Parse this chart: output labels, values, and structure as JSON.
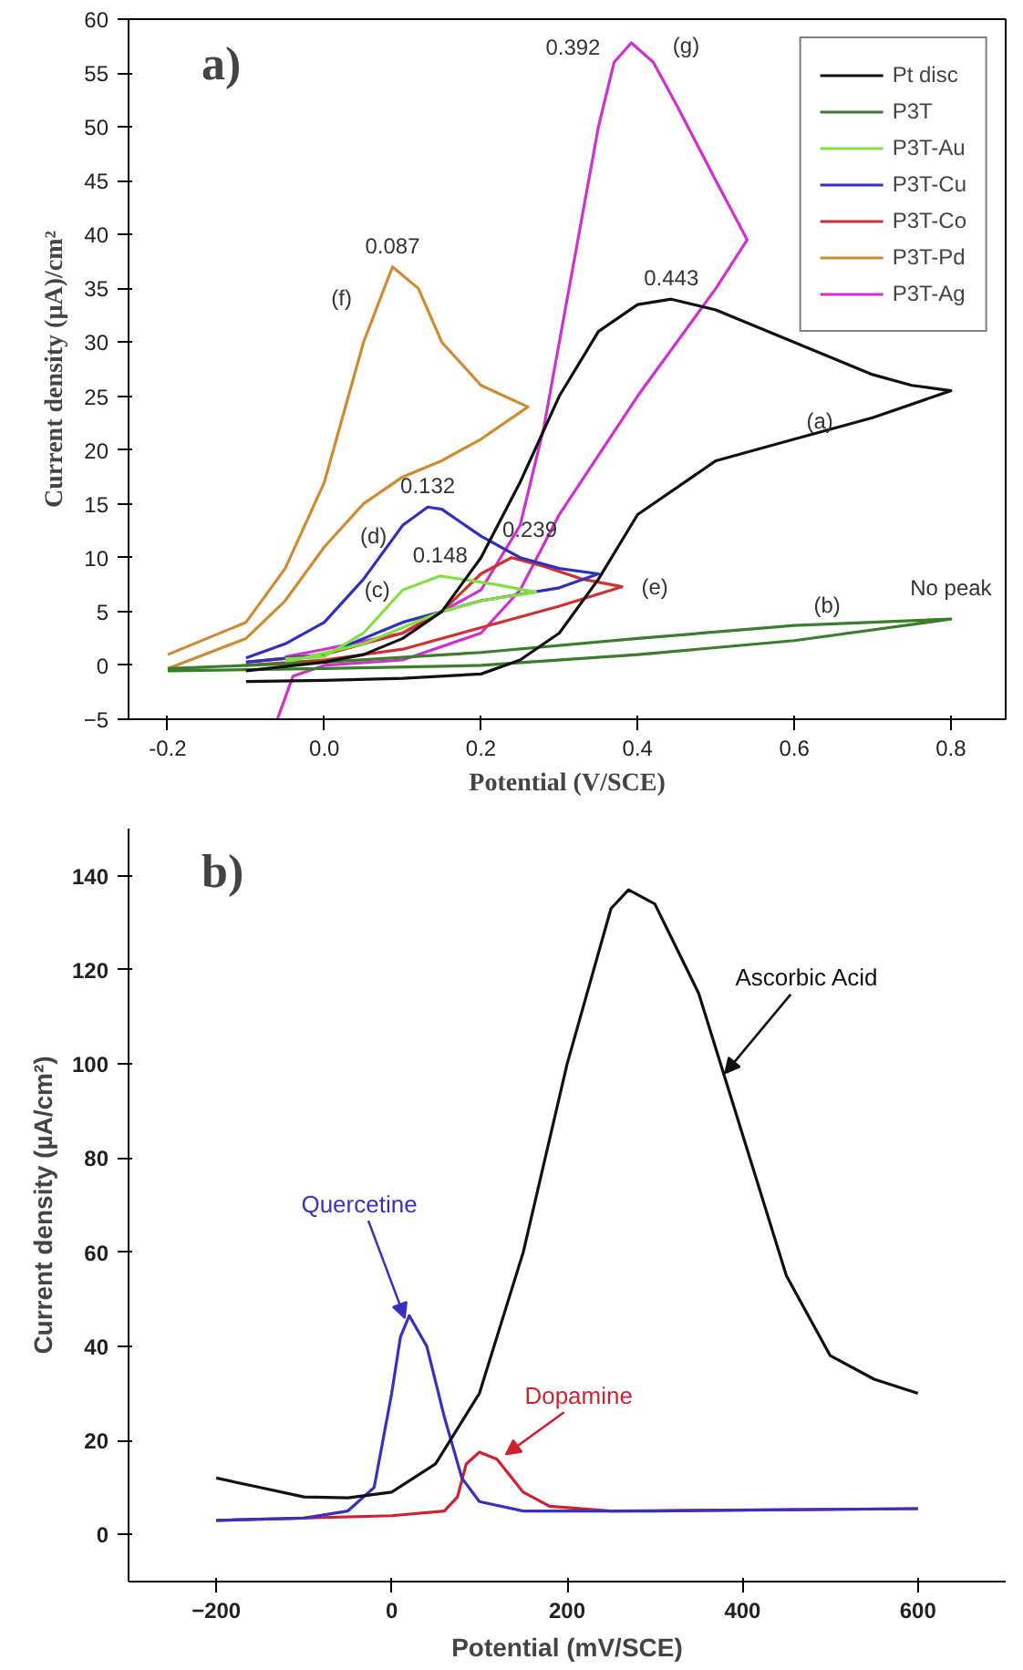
{
  "chart_data": [
    {
      "type": "line",
      "title": "a)",
      "xlabel": "Potential (V/SCE)",
      "ylabel": "Current density (µA)/cm²",
      "xlim": [
        -0.25,
        0.87
      ],
      "xticks": [
        {
          "value": -0.2,
          "label": "-0.2"
        },
        {
          "value": 0,
          "label": "0.0"
        },
        {
          "value": 0.2,
          "label": "0.2"
        },
        {
          "value": 0.4,
          "label": "0.4"
        },
        {
          "value": 0.6,
          "label": "0.6"
        },
        {
          "value": 0.8,
          "label": "0.8"
        }
      ],
      "ylim": [
        -5,
        60
      ],
      "yticks": [
        -5,
        0,
        5,
        10,
        15,
        20,
        25,
        30,
        35,
        40,
        45,
        50,
        55,
        60
      ],
      "grid": false,
      "legend": "top right",
      "series": [
        {
          "name": "Pt disc",
          "color": "#111111",
          "x": [
            -0.1,
            0,
            0.1,
            0.2,
            0.25,
            0.3,
            0.35,
            0.4,
            0.5,
            0.6,
            0.7,
            0.8,
            0.75,
            0.7,
            0.6,
            0.5,
            0.443,
            0.4,
            0.35,
            0.3,
            0.25,
            0.2,
            0.15,
            0.1,
            0.05,
            0,
            -0.1
          ],
          "values": [
            -1.5,
            -1.4,
            -1.2,
            -0.8,
            0.5,
            3,
            8,
            14,
            19,
            21,
            23,
            25.5,
            26,
            27,
            30,
            33,
            34,
            33.5,
            31,
            25,
            17,
            10,
            5,
            2.5,
            1,
            0.3,
            -0.5
          ]
        },
        {
          "name": "P3T",
          "color": "#3a7d2a",
          "x": [
            -0.2,
            0,
            0.2,
            0.4,
            0.6,
            0.8,
            0.6,
            0.4,
            0.2,
            0,
            -0.2
          ],
          "values": [
            -0.5,
            -0.3,
            0,
            1,
            2.3,
            4.3,
            3.7,
            2.5,
            1.2,
            0.3,
            -0.3
          ]
        },
        {
          "name": "P3T-Au",
          "color": "#80e040",
          "x": [
            -0.05,
            0.05,
            0.1,
            0.15,
            0.2,
            0.27,
            0.22,
            0.148,
            0.1,
            0.05,
            0,
            -0.05
          ],
          "values": [
            0.3,
            2,
            3.5,
            5,
            6,
            6.8,
            7.5,
            8.3,
            7,
            3,
            0.8,
            0.6
          ]
        },
        {
          "name": "P3T-Cu",
          "color": "#3030c0",
          "x": [
            -0.1,
            0,
            0.1,
            0.2,
            0.3,
            0.35,
            0.3,
            0.25,
            0.2,
            0.15,
            0.132,
            0.1,
            0.05,
            0,
            -0.05,
            -0.1
          ],
          "values": [
            0.3,
            1,
            4,
            6,
            7.2,
            8.5,
            9,
            10,
            12,
            14.5,
            14.7,
            13,
            8,
            4,
            2,
            0.7
          ]
        },
        {
          "name": "P3T-Co",
          "color": "#d03030",
          "x": [
            -0.1,
            0,
            0.1,
            0.2,
            0.3,
            0.38,
            0.33,
            0.28,
            0.239,
            0.2,
            0.15,
            0.1,
            0,
            -0.1
          ],
          "values": [
            0,
            0.5,
            1.5,
            3.5,
            5.5,
            7.3,
            8,
            9.2,
            10,
            8.5,
            5,
            3,
            1,
            0.3
          ]
        },
        {
          "name": "P3T-Pd",
          "color": "#d08a30",
          "x": [
            -0.2,
            -0.1,
            -0.05,
            0,
            0.05,
            0.087,
            0.12,
            0.15,
            0.2,
            0.26,
            0.2,
            0.15,
            0.1,
            0.05,
            0,
            -0.05,
            -0.1,
            -0.2
          ],
          "values": [
            1,
            4,
            9,
            17,
            30,
            37,
            35,
            30,
            26,
            24,
            21,
            19,
            17.5,
            15,
            11,
            6,
            2.5,
            -0.3
          ]
        },
        {
          "name": "P3T-Ag",
          "color": "#d030d0",
          "x": [
            -0.06,
            -0.04,
            0,
            0.1,
            0.2,
            0.25,
            0.3,
            0.4,
            0.5,
            0.54,
            0.5,
            0.45,
            0.42,
            0.392,
            0.37,
            0.35,
            0.32,
            0.28,
            0.25,
            0.2,
            0.1,
            0,
            -0.05
          ],
          "values": [
            -5,
            -1,
            0,
            0.5,
            3,
            7,
            14,
            25,
            35,
            39.5,
            45,
            52,
            56,
            57.8,
            56,
            50,
            38,
            22,
            13,
            7,
            3,
            1.5,
            0.8
          ]
        }
      ],
      "annotations": [
        {
          "text": "0.087",
          "x": 0.087,
          "y": 37
        },
        {
          "text": "0.132",
          "x": 0.132,
          "y": 14.7
        },
        {
          "text": "0.148",
          "x": 0.148,
          "y": 8.3
        },
        {
          "text": "0.239",
          "x": 0.239,
          "y": 10
        },
        {
          "text": "0.392",
          "x": 0.392,
          "y": 57.8
        },
        {
          "text": "0.443",
          "x": 0.443,
          "y": 34
        },
        {
          "text": "(a)",
          "x": 0.6,
          "y": 21
        },
        {
          "text": "(b)",
          "x": 0.6,
          "y": 3.7
        },
        {
          "text": "No peak",
          "x": 0.8,
          "y": 4.3
        },
        {
          "text": "(c)",
          "x": 0.1,
          "y": 7
        },
        {
          "text": "(d)",
          "x": 0.1,
          "y": 13
        },
        {
          "text": "(e)",
          "x": 0.38,
          "y": 7.3
        },
        {
          "text": "(f)",
          "x": 0.05,
          "y": 30
        },
        {
          "text": "(g)",
          "x": 0.42,
          "y": 56
        }
      ]
    },
    {
      "type": "line",
      "title": "b)",
      "xlabel": "Potential (mV/SCE)",
      "ylabel": "Current density (µA/cm²)",
      "xlim": [
        -300,
        700
      ],
      "xticks": [
        -200,
        0,
        200,
        400,
        600
      ],
      "ylim": [
        -10,
        150
      ],
      "yticks": [
        0,
        20,
        40,
        60,
        80,
        100,
        120,
        140
      ],
      "grid": false,
      "legend": false,
      "series": [
        {
          "color": "#111111",
          "x": [
            -200,
            -150,
            -100,
            -50,
            0,
            50,
            100,
            150,
            200,
            250,
            270,
            300,
            350,
            400,
            450,
            500,
            550,
            600
          ],
          "values": [
            12,
            10,
            8,
            7.8,
            9,
            15,
            30,
            60,
            100,
            133,
            137,
            134,
            115,
            85,
            55,
            38,
            33,
            30
          ]
        },
        {
          "color": "#3a30c0",
          "x": [
            -200,
            -100,
            -50,
            -20,
            0,
            10,
            20,
            40,
            60,
            80,
            100,
            150,
            300,
            600
          ],
          "values": [
            3,
            3.5,
            5,
            10,
            30,
            42,
            46.5,
            40,
            25,
            12,
            7,
            5,
            5,
            5.5
          ]
        },
        {
          "color": "#d02030",
          "x": [
            -200,
            0,
            60,
            75,
            85,
            100,
            120,
            150,
            180,
            250,
            600
          ],
          "values": [
            3,
            4,
            5,
            8,
            15,
            17.5,
            16,
            9,
            6,
            5,
            5.5
          ]
        }
      ],
      "annotations": [
        {
          "text": "Ascorbic Acid",
          "x": 380,
          "y": 98
        },
        {
          "text": "Quercetine",
          "x": 15,
          "y": 46
        },
        {
          "text": "Dopamine",
          "x": 130,
          "y": 17
        }
      ]
    }
  ]
}
